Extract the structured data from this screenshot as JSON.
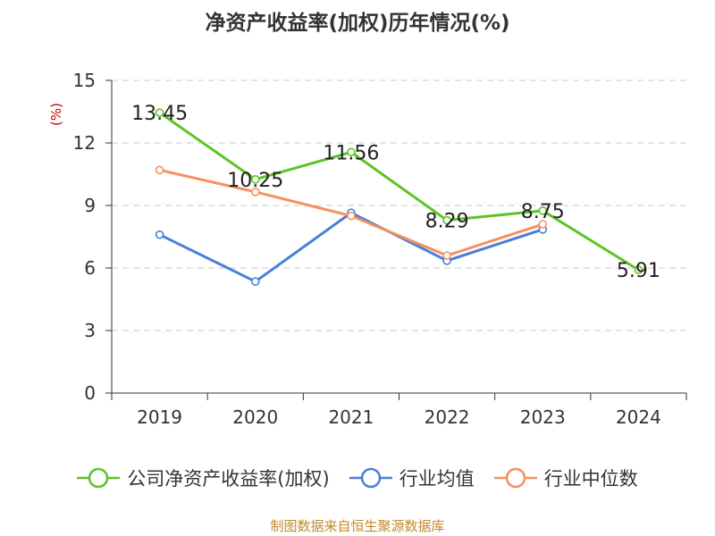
{
  "chart_data": {
    "type": "line",
    "title": "净资产收益率(加权)历年情况(%)",
    "ylabel": "(%)",
    "categories": [
      "2019",
      "2020",
      "2021",
      "2022",
      "2023",
      "2024"
    ],
    "ylim": [
      0,
      15
    ],
    "yticks": [
      0,
      3,
      6,
      9,
      12,
      15
    ],
    "grid": true,
    "legend_position": "bottom",
    "series": [
      {
        "name": "公司净资产收益率(加权)",
        "color": "#5cc424",
        "values": [
          13.45,
          10.25,
          11.56,
          8.29,
          8.75,
          5.91
        ],
        "labels": [
          "13.45",
          "10.25",
          "11.56",
          "8.29",
          "8.75",
          "5.91"
        ]
      },
      {
        "name": "行业均值",
        "color": "#4a7fd8",
        "values": [
          7.6,
          5.35,
          8.65,
          6.35,
          7.85,
          null
        ]
      },
      {
        "name": "行业中位数",
        "color": "#f59060",
        "values": [
          10.7,
          9.65,
          8.5,
          6.6,
          8.1,
          null
        ]
      }
    ]
  },
  "source_text": "制图数据来自恒生聚源数据库"
}
